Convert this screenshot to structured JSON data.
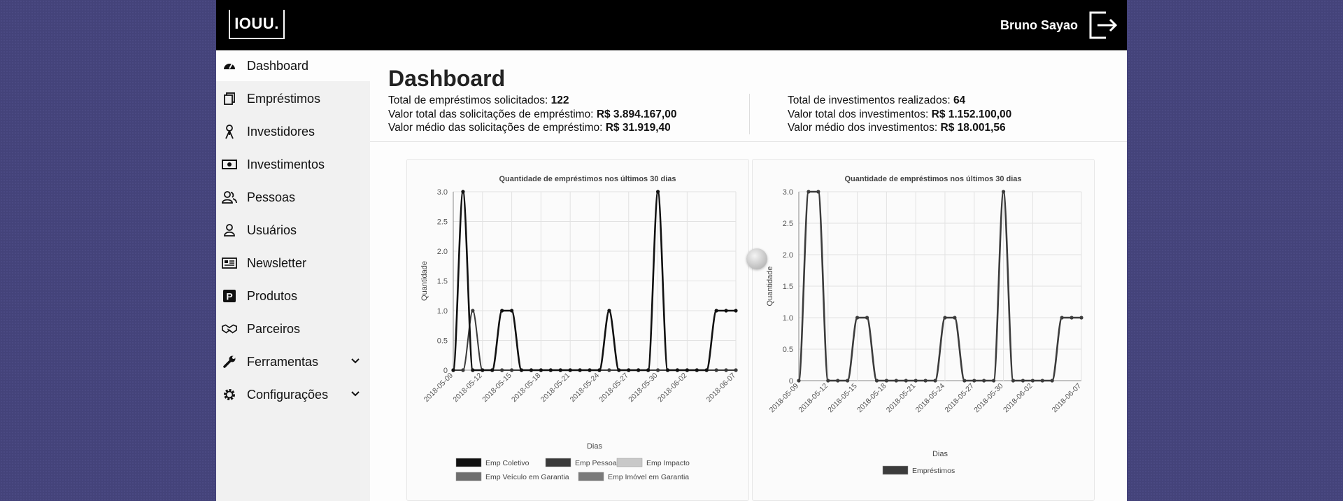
{
  "header": {
    "logo": "IOUU.",
    "user_name": "Bruno Sayao",
    "logout_icon": "logout-icon"
  },
  "sidebar": {
    "items": [
      {
        "label": "Dashboard",
        "icon": "dashboard-icon",
        "active": true
      },
      {
        "label": "Empréstimos",
        "icon": "documents-icon"
      },
      {
        "label": "Investidores",
        "icon": "investor-icon"
      },
      {
        "label": "Investimentos",
        "icon": "banknote-icon"
      },
      {
        "label": "Pessoas",
        "icon": "people-icon"
      },
      {
        "label": "Usuários",
        "icon": "user-icon"
      },
      {
        "label": "Newsletter",
        "icon": "newspaper-icon"
      },
      {
        "label": "Produtos",
        "icon": "parking-p-icon"
      },
      {
        "label": "Parceiros",
        "icon": "handshake-icon"
      },
      {
        "label": "Ferramentas",
        "icon": "wrench-icon",
        "expandable": true
      },
      {
        "label": "Configurações",
        "icon": "gear-icon",
        "expandable": true
      }
    ]
  },
  "dashboard": {
    "title": "Dashboard",
    "loans": {
      "total_label": "Total de empréstimos solicitados:",
      "total_value": "122",
      "sum_label": "Valor total das solicitações de empréstimo:",
      "sum_value": "R$ 3.894.167,00",
      "avg_label": "Valor médio das solicitações de empréstimo:",
      "avg_value": "R$ 31.919,40"
    },
    "investments": {
      "total_label": "Total de investimentos realizados:",
      "total_value": "64",
      "sum_label": "Valor total dos investimentos:",
      "sum_value": "R$ 1.152.100,00",
      "avg_label": "Valor médio dos investimentos:",
      "avg_value": "R$ 18.001,56"
    }
  },
  "chart_data": [
    {
      "type": "line",
      "title": "Quantidade de empréstimos nos últimos 30 dias",
      "xlabel": "Dias",
      "ylabel": "Quantidade",
      "ylim": [
        0,
        3
      ],
      "yticks": [
        "0",
        "0.5",
        "1.0",
        "1.5",
        "2.0",
        "2.5",
        "3.0"
      ],
      "x": [
        "2018-05-09",
        "2018-05-10",
        "2018-05-11",
        "2018-05-12",
        "2018-05-13",
        "2018-05-14",
        "2018-05-15",
        "2018-05-16",
        "2018-05-17",
        "2018-05-18",
        "2018-05-19",
        "2018-05-20",
        "2018-05-21",
        "2018-05-22",
        "2018-05-23",
        "2018-05-24",
        "2018-05-25",
        "2018-05-26",
        "2018-05-27",
        "2018-05-28",
        "2018-05-29",
        "2018-05-30",
        "2018-05-31",
        "2018-06-01",
        "2018-06-02",
        "2018-06-03",
        "2018-06-04",
        "2018-06-05",
        "2018-06-06",
        "2018-06-07"
      ],
      "xtick_labels": [
        "2018-05-09",
        "2018-05-12",
        "2018-05-15",
        "2018-05-18",
        "2018-05-21",
        "2018-05-24",
        "2018-05-27",
        "2018-05-30",
        "2018-06-02",
        "2018-06-07"
      ],
      "legend": "bottom",
      "grid": true,
      "series": [
        {
          "name": "Emp Coletivo",
          "color": "#111111",
          "values": [
            0,
            3,
            0,
            0,
            0,
            1,
            1,
            0,
            0,
            0,
            0,
            0,
            0,
            0,
            0,
            0,
            1,
            0,
            0,
            0,
            0,
            3,
            0,
            0,
            0,
            0,
            0,
            1,
            1,
            1
          ]
        },
        {
          "name": "Emp Pessoal",
          "color": "#3a3a3a",
          "values": [
            0,
            0,
            1,
            0,
            0,
            0,
            0,
            0,
            0,
            0,
            0,
            0,
            0,
            0,
            0,
            0,
            0,
            0,
            0,
            0,
            0,
            0,
            0,
            0,
            0,
            0,
            0,
            0,
            0,
            0
          ]
        },
        {
          "name": "Emp Impacto",
          "color": "#c8c8c8",
          "values": [
            0,
            0,
            0,
            0,
            0,
            0,
            0,
            0,
            0,
            0,
            0,
            0,
            0,
            0,
            0,
            0,
            0,
            0,
            0,
            0,
            0,
            0,
            0,
            0,
            0,
            0,
            0,
            0,
            0,
            0
          ]
        },
        {
          "name": "Emp Veículo em Garantia",
          "color": "#6e6e6e",
          "values": [
            0,
            0,
            0,
            0,
            0,
            0,
            0,
            0,
            0,
            0,
            0,
            0,
            0,
            0,
            0,
            0,
            0,
            0,
            0,
            0,
            0,
            0,
            0,
            0,
            0,
            0,
            0,
            0,
            0,
            0
          ]
        },
        {
          "name": "Emp Imóvel em Garantia",
          "color": "#7a7a7a",
          "values": [
            0,
            0,
            0,
            0,
            0,
            0,
            0,
            0,
            0,
            0,
            0,
            0,
            0,
            0,
            0,
            0,
            0,
            0,
            0,
            0,
            0,
            0,
            0,
            0,
            0,
            0,
            0,
            0,
            0,
            0
          ]
        }
      ]
    },
    {
      "type": "line",
      "title": "Quantidade de empréstimos nos últimos 30 dias",
      "xlabel": "Dias",
      "ylabel": "Quantidade",
      "ylim": [
        0,
        3
      ],
      "yticks": [
        "0",
        "0.5",
        "1.0",
        "1.5",
        "2.0",
        "2.5",
        "3.0"
      ],
      "x": [
        "2018-05-09",
        "2018-05-10",
        "2018-05-11",
        "2018-05-12",
        "2018-05-13",
        "2018-05-14",
        "2018-05-15",
        "2018-05-16",
        "2018-05-17",
        "2018-05-18",
        "2018-05-19",
        "2018-05-20",
        "2018-05-21",
        "2018-05-22",
        "2018-05-23",
        "2018-05-24",
        "2018-05-25",
        "2018-05-26",
        "2018-05-27",
        "2018-05-28",
        "2018-05-29",
        "2018-05-30",
        "2018-05-31",
        "2018-06-01",
        "2018-06-02",
        "2018-06-03",
        "2018-06-04",
        "2018-06-05",
        "2018-06-06",
        "2018-06-07"
      ],
      "xtick_labels": [
        "2018-05-09",
        "2018-05-12",
        "2018-05-15",
        "2018-05-18",
        "2018-05-21",
        "2018-05-24",
        "2018-05-27",
        "2018-05-30",
        "2018-06-02",
        "2018-06-07"
      ],
      "legend": "bottom",
      "grid": true,
      "series": [
        {
          "name": "Empréstimos",
          "color": "#3c3c3c",
          "values": [
            0,
            3,
            3,
            0,
            0,
            0,
            1,
            1,
            0,
            0,
            0,
            0,
            0,
            0,
            0,
            1,
            1,
            0,
            0,
            0,
            0,
            3,
            0,
            0,
            0,
            0,
            0,
            1,
            1,
            1
          ]
        }
      ]
    }
  ]
}
